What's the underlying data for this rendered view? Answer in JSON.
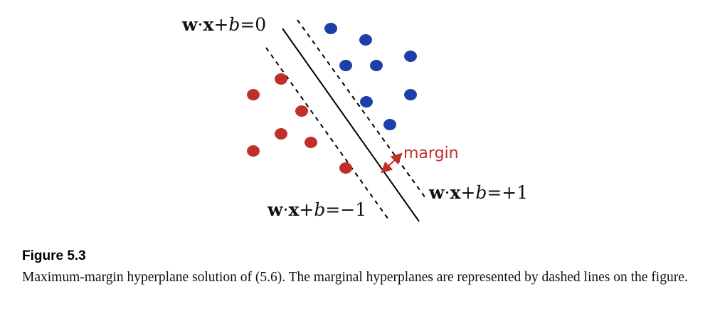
{
  "figure": {
    "labels": {
      "hyperplane": {
        "lhs_w": "w",
        "dot": "·",
        "lhs_x": "x",
        "plus": "+",
        "b": "b",
        "rhs": "=0"
      },
      "plus_one": {
        "lhs_w": "w",
        "dot": "·",
        "lhs_x": "x",
        "plus": "+",
        "b": "b",
        "rhs": "=+1"
      },
      "minus_one": {
        "lhs_w": "w",
        "dot": "·",
        "lhs_x": "x",
        "plus": "+",
        "b": "b",
        "rhs": "=−1"
      },
      "margin": "margin"
    },
    "colors": {
      "positive_class": "#1f3fa8",
      "negative_class": "#c0302a",
      "margin_annotation": "#c0302a",
      "lines": "#000000"
    }
  },
  "caption": {
    "title": "Figure 5.3",
    "text": "Maximum-margin hyperplane solution of (5.6). The marginal hyperplanes are represented by dashed lines on the figure."
  }
}
